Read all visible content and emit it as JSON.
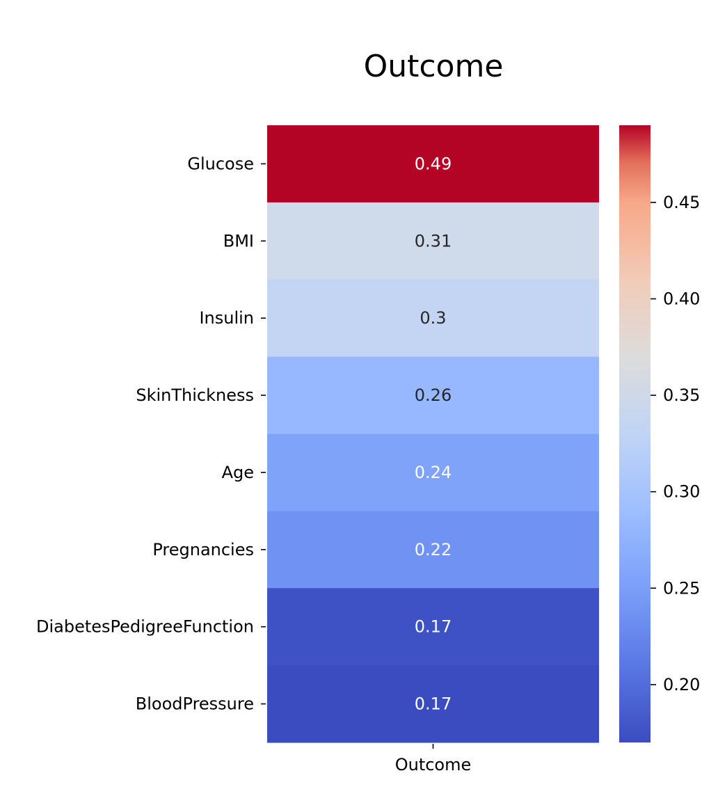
{
  "chart_data": {
    "type": "heatmap",
    "title": "Outcome",
    "columns": [
      "Outcome"
    ],
    "rows": [
      "Glucose",
      "BMI",
      "Insulin",
      "SkinThickness",
      "Age",
      "Pregnancies",
      "DiabetesPedigreeFunction",
      "BloodPressure"
    ],
    "values": [
      0.49,
      0.31,
      0.3,
      0.26,
      0.24,
      0.22,
      0.17,
      0.17
    ],
    "value_labels": [
      "0.49",
      "0.31",
      "0.3",
      "0.26",
      "0.24",
      "0.22",
      "0.17",
      "0.17"
    ],
    "colorbar": {
      "colormap": "coolwarm",
      "range": [
        0.17,
        0.49
      ],
      "ticks": [
        0.2,
        0.25,
        0.3,
        0.35,
        0.4,
        0.45
      ],
      "tick_labels": [
        "0.20",
        "0.25",
        "0.30",
        "0.35",
        "0.40",
        "0.45"
      ]
    },
    "cell_colors": [
      "#b40426",
      "#cfdaea",
      "#c4d5f3",
      "#97b8ff",
      "#80a3fa",
      "#6f92f3",
      "#3e51c5",
      "#3b4cc0"
    ]
  }
}
